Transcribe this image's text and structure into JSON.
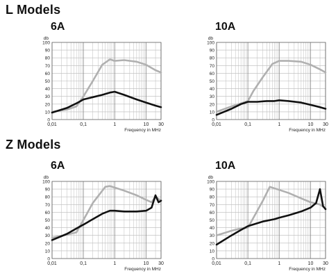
{
  "sections": [
    {
      "title": "L Models"
    },
    {
      "title": "Z Models"
    }
  ],
  "chart_data": [
    {
      "type": "line",
      "section": "L Models",
      "title": "6A",
      "ylabel": "db",
      "xlabel": "Frequency in MHz",
      "xscale": "log",
      "xlim": [
        0.01,
        30
      ],
      "ylim": [
        0,
        100
      ],
      "xticks": [
        0.01,
        0.1,
        1,
        10,
        30
      ],
      "xtick_labels": [
        "0,01",
        "0,1",
        "1",
        "10",
        "30"
      ],
      "yticks": [
        0,
        10,
        20,
        30,
        40,
        50,
        60,
        70,
        80,
        90,
        100
      ],
      "grid": true,
      "series": [
        {
          "color": "#b0b0b0",
          "x": [
            0.01,
            0.03,
            0.06,
            0.1,
            0.2,
            0.4,
            0.7,
            1,
            2,
            5,
            10,
            20,
            30
          ],
          "y": [
            10,
            13,
            17,
            30,
            50,
            71,
            78,
            76,
            77,
            75,
            71,
            64,
            61
          ]
        },
        {
          "color": "#111111",
          "x": [
            0.01,
            0.03,
            0.06,
            0.1,
            0.2,
            0.4,
            0.7,
            1,
            2,
            5,
            10,
            20,
            30
          ],
          "y": [
            9,
            15,
            21,
            26,
            29,
            32,
            35,
            36,
            32,
            26,
            22,
            18,
            16
          ]
        }
      ]
    },
    {
      "type": "line",
      "section": "L Models",
      "title": "10A",
      "ylabel": "db",
      "xlabel": "Frequency in MHz",
      "xscale": "log",
      "xlim": [
        0.01,
        30
      ],
      "ylim": [
        0,
        100
      ],
      "xticks": [
        0.01,
        0.1,
        1,
        10,
        30
      ],
      "xtick_labels": [
        "0,01",
        "0,1",
        "1",
        "10",
        "30"
      ],
      "yticks": [
        0,
        10,
        20,
        30,
        40,
        50,
        60,
        70,
        80,
        90,
        100
      ],
      "grid": true,
      "series": [
        {
          "color": "#b0b0b0",
          "x": [
            0.01,
            0.03,
            0.06,
            0.1,
            0.15,
            0.3,
            0.6,
            1,
            2,
            5,
            10,
            20,
            30
          ],
          "y": [
            10,
            17,
            21,
            24,
            37,
            55,
            72,
            76,
            76,
            75,
            71,
            65,
            61
          ]
        },
        {
          "color": "#111111",
          "x": [
            0.01,
            0.03,
            0.06,
            0.1,
            0.2,
            0.4,
            0.7,
            1,
            2,
            5,
            10,
            20,
            30
          ],
          "y": [
            6,
            14,
            20,
            23,
            23,
            24,
            24,
            25,
            24,
            22,
            19,
            16,
            14
          ]
        }
      ]
    },
    {
      "type": "line",
      "section": "Z Models",
      "title": "6A",
      "ylabel": "db",
      "xlabel": "Frequency in MHz",
      "xscale": "log",
      "xlim": [
        0.01,
        30
      ],
      "ylim": [
        0,
        100
      ],
      "xticks": [
        0.01,
        0.1,
        1,
        10,
        30
      ],
      "xtick_labels": [
        "0,01",
        "0,1",
        "1",
        "10",
        "30"
      ],
      "yticks": [
        0,
        10,
        20,
        30,
        40,
        50,
        60,
        70,
        80,
        90,
        100
      ],
      "grid": true,
      "series": [
        {
          "color": "#b0b0b0",
          "x": [
            0.01,
            0.03,
            0.06,
            0.1,
            0.2,
            0.5,
            0.7,
            1,
            2,
            5,
            10,
            15,
            20,
            30
          ],
          "y": [
            27,
            31,
            34,
            50,
            72,
            93,
            94,
            92,
            88,
            82,
            76,
            73,
            80,
            75
          ]
        },
        {
          "color": "#111111",
          "x": [
            0.01,
            0.03,
            0.06,
            0.1,
            0.2,
            0.4,
            0.7,
            1,
            2,
            5,
            10,
            15,
            20,
            25,
            30
          ],
          "y": [
            24,
            32,
            39,
            44,
            51,
            58,
            62,
            62,
            61,
            61,
            62,
            66,
            82,
            73,
            75
          ]
        }
      ]
    },
    {
      "type": "line",
      "section": "Z Models",
      "title": "10A",
      "ylabel": "db",
      "xlabel": "Frequency in MHz",
      "xscale": "log",
      "xlim": [
        0.01,
        30
      ],
      "ylim": [
        0,
        100
      ],
      "xticks": [
        0.01,
        0.1,
        1,
        10,
        30
      ],
      "xtick_labels": [
        "0,01",
        "0,1",
        "1",
        "10",
        "30"
      ],
      "yticks": [
        0,
        10,
        20,
        30,
        40,
        50,
        60,
        70,
        80,
        90,
        100
      ],
      "grid": true,
      "series": [
        {
          "color": "#b0b0b0",
          "x": [
            0.01,
            0.03,
            0.06,
            0.1,
            0.3,
            0.5,
            1,
            2,
            5,
            10,
            20,
            30
          ],
          "y": [
            30,
            36,
            39,
            40,
            75,
            93,
            89,
            85,
            78,
            73,
            70,
            65
          ]
        },
        {
          "color": "#111111",
          "x": [
            0.01,
            0.03,
            0.06,
            0.1,
            0.3,
            0.7,
            1,
            2,
            5,
            10,
            15,
            20,
            25,
            30
          ],
          "y": [
            18,
            30,
            37,
            42,
            48,
            51,
            53,
            56,
            61,
            66,
            72,
            90,
            68,
            64
          ]
        }
      ]
    }
  ]
}
